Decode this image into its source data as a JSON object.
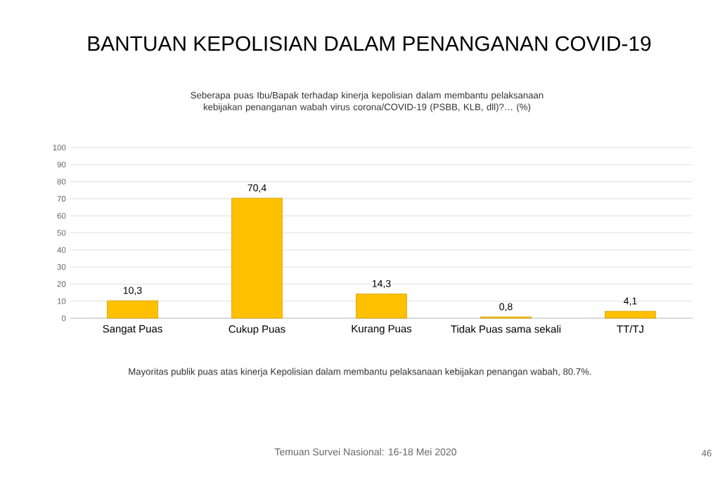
{
  "chart_data": {
    "type": "bar",
    "title": "BANTUAN KEPOLISIAN DALAM PENANGANAN COVID-19",
    "subtitle": "Seberapa puas Ibu/Bapak terhadap kinerja kepolisian dalam membantu pelaksanaan kebijakan penanganan wabah virus corona/COVID-19 (PSBB, KLB, dll)?… (%)",
    "categories": [
      "Sangat Puas",
      "Cukup Puas",
      "Kurang Puas",
      "Tidak Puas sama sekali",
      "TT/TJ"
    ],
    "values": [
      10.3,
      70.4,
      14.3,
      0.8,
      4.1
    ],
    "value_labels": [
      "10,3",
      "70,4",
      "14,3",
      "0,8",
      "4,1"
    ],
    "color": "#ffc000",
    "ylim": [
      0,
      100
    ],
    "yticks": [
      0,
      10,
      20,
      30,
      40,
      50,
      60,
      70,
      80,
      90,
      100
    ],
    "grid": "y",
    "annotations": [
      "Mayoritas publik puas atas kinerja Kepolisian dalam membantu pelaksanaan kebijakan penangan wabah, 80.7%.",
      "Temuan Survei Nasional: 16-18 Mei 2020",
      "46"
    ]
  }
}
